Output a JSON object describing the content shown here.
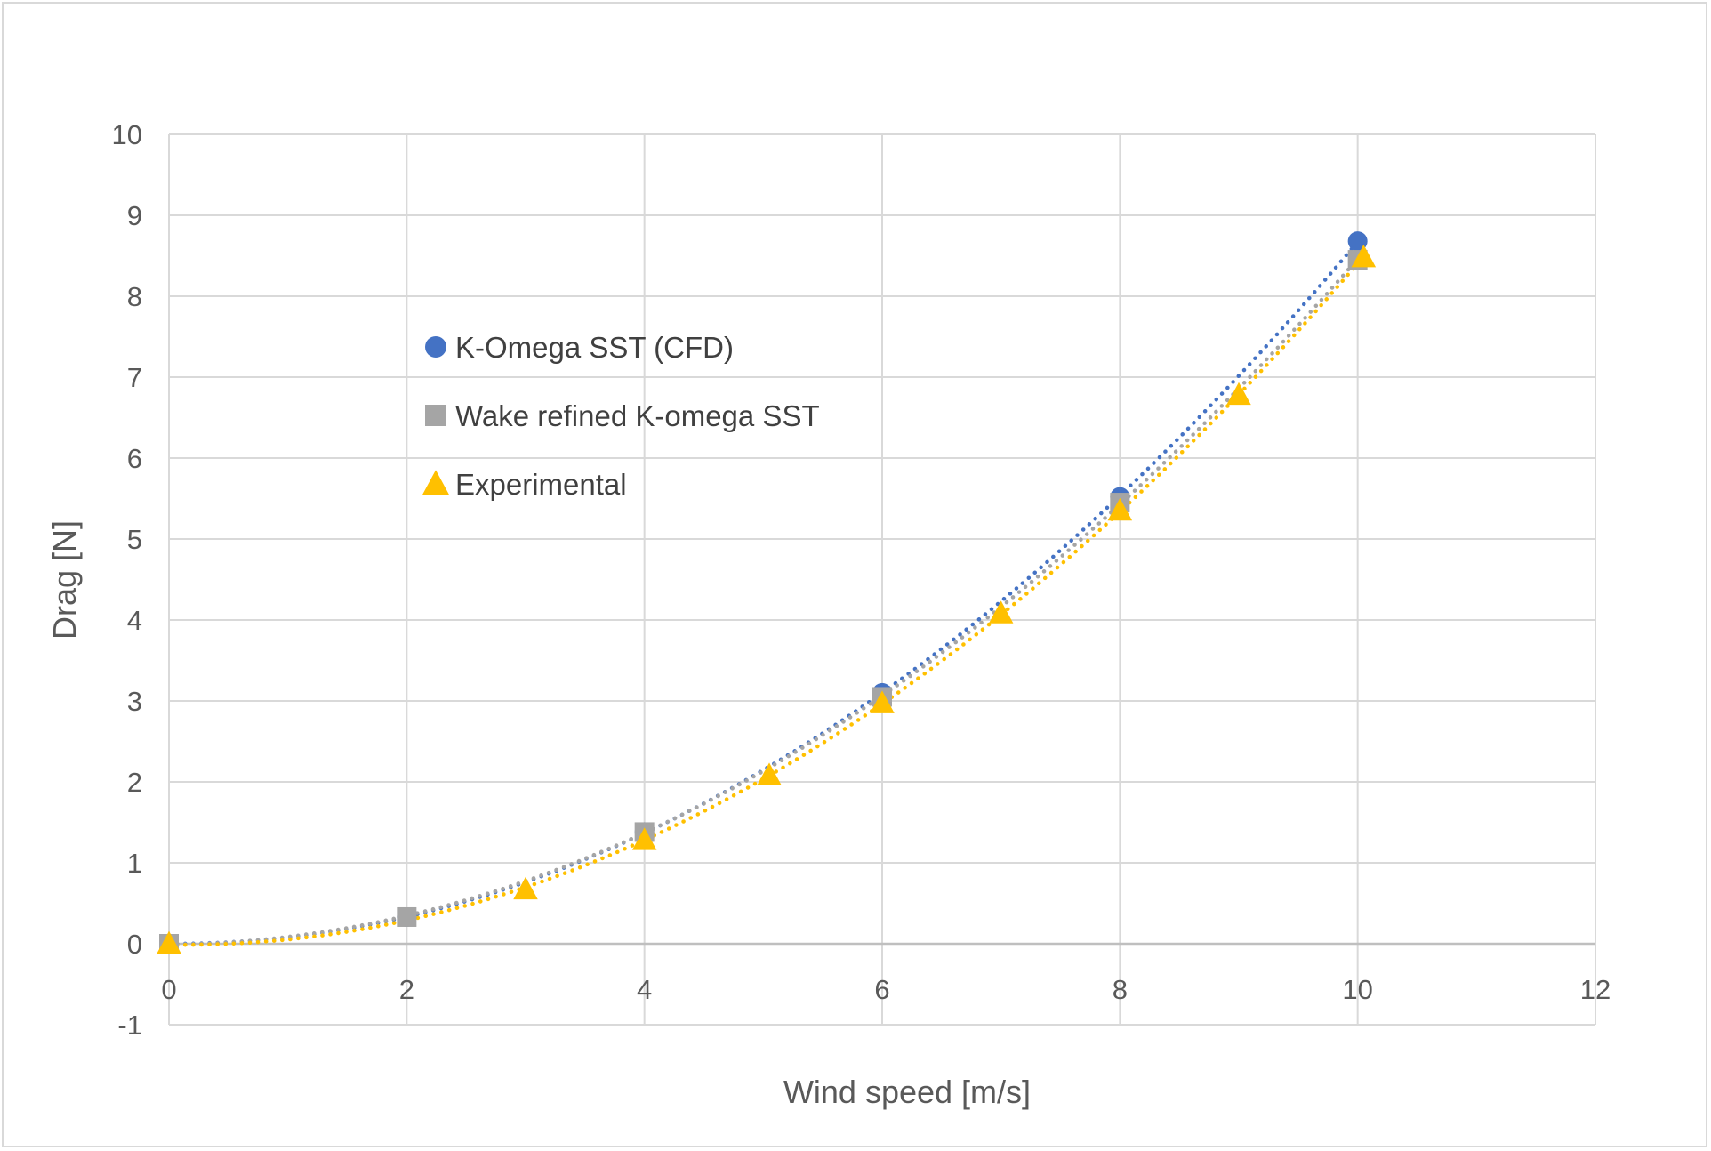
{
  "chart_data": {
    "type": "scatter",
    "title": "",
    "xlabel": "Wind speed [m/s]",
    "ylabel": "Drag [N]",
    "xlim": [
      0,
      12
    ],
    "ylim": [
      -1,
      10
    ],
    "x_ticks": [
      0,
      2,
      4,
      6,
      8,
      10,
      12
    ],
    "y_ticks": [
      -1,
      0,
      1,
      2,
      3,
      4,
      5,
      6,
      7,
      8,
      9,
      10
    ],
    "grid": true,
    "legend_position": "upper-left-inside",
    "trendline": "polynomial order 2, dotted",
    "series": [
      {
        "name": "K-Omega SST (CFD)",
        "color": "#4472c4",
        "marker": "circle",
        "points": [
          [
            0,
            0
          ],
          [
            2,
            0.33
          ],
          [
            4,
            1.38
          ],
          [
            6,
            3.1
          ],
          [
            8,
            5.52
          ],
          [
            10,
            8.68
          ]
        ]
      },
      {
        "name": "Wake refined K-omega SST",
        "color": "#a5a5a5",
        "marker": "square",
        "points": [
          [
            0,
            0
          ],
          [
            2,
            0.33
          ],
          [
            4,
            1.38
          ],
          [
            6,
            3.05
          ],
          [
            8,
            5.45
          ],
          [
            10,
            8.45
          ]
        ]
      },
      {
        "name": "Experimental",
        "color": "#ffc000",
        "marker": "triangle",
        "points": [
          [
            0,
            0
          ],
          [
            3,
            0.67
          ],
          [
            4,
            1.28
          ],
          [
            5.05,
            2.08
          ],
          [
            6,
            2.97
          ],
          [
            7,
            4.08
          ],
          [
            8,
            5.35
          ],
          [
            9,
            6.78
          ],
          [
            10.05,
            8.48
          ]
        ]
      }
    ]
  }
}
